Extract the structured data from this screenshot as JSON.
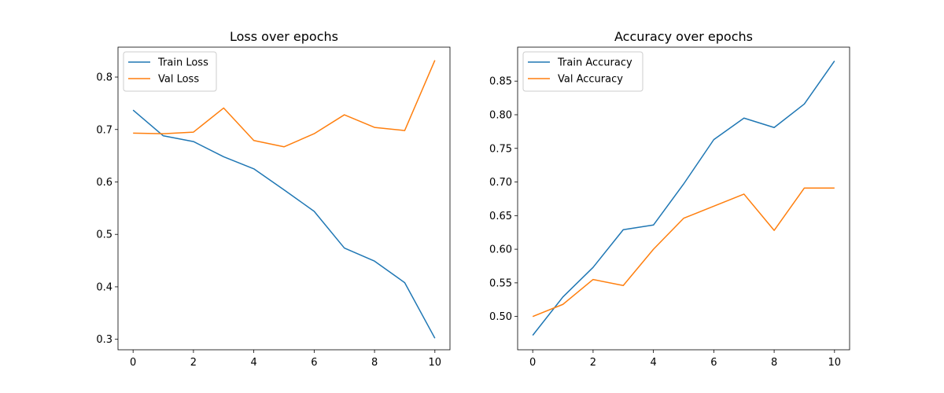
{
  "chart_data": [
    {
      "type": "line",
      "title": "Loss over epochs",
      "xlabel": "",
      "ylabel": "",
      "xlim": [
        -0.5,
        10.5
      ],
      "ylim": [
        0.28,
        0.857
      ],
      "xticks": [
        0,
        2,
        4,
        6,
        8,
        10
      ],
      "yticks": [
        0.3,
        0.4,
        0.5,
        0.6,
        0.7,
        0.8
      ],
      "ytick_decimals": 1,
      "grid": false,
      "legend_position": "top-left",
      "x": [
        0,
        1,
        2,
        3,
        4,
        5,
        6,
        7,
        8,
        9,
        10
      ],
      "series": [
        {
          "name": "Train Loss",
          "color": "#1f77b4",
          "values": [
            0.737,
            0.688,
            0.677,
            0.648,
            0.625,
            0.585,
            0.544,
            0.474,
            0.449,
            0.408,
            0.302
          ]
        },
        {
          "name": "Val Loss",
          "color": "#ff7f0e",
          "values": [
            0.693,
            0.692,
            0.695,
            0.741,
            0.679,
            0.667,
            0.692,
            0.728,
            0.704,
            0.698,
            0.832
          ]
        }
      ]
    },
    {
      "type": "line",
      "title": "Accuracy over epochs",
      "xlabel": "",
      "ylabel": "",
      "xlim": [
        -0.5,
        10.5
      ],
      "ylim": [
        0.4505,
        0.9005
      ],
      "xticks": [
        0,
        2,
        4,
        6,
        8,
        10
      ],
      "yticks": [
        0.5,
        0.55,
        0.6,
        0.65,
        0.7,
        0.75,
        0.8,
        0.85
      ],
      "ytick_decimals": 2,
      "grid": false,
      "legend_position": "top-left",
      "x": [
        0,
        1,
        2,
        3,
        4,
        5,
        6,
        7,
        8,
        9,
        10
      ],
      "series": [
        {
          "name": "Train Accuracy",
          "color": "#1f77b4",
          "values": [
            0.472,
            0.529,
            0.573,
            0.629,
            0.636,
            0.697,
            0.763,
            0.795,
            0.781,
            0.816,
            0.88
          ]
        },
        {
          "name": "Val Accuracy",
          "color": "#ff7f0e",
          "values": [
            0.5,
            0.518,
            0.555,
            0.546,
            0.6,
            0.646,
            0.664,
            0.682,
            0.628,
            0.691,
            0.691
          ]
        }
      ]
    }
  ]
}
